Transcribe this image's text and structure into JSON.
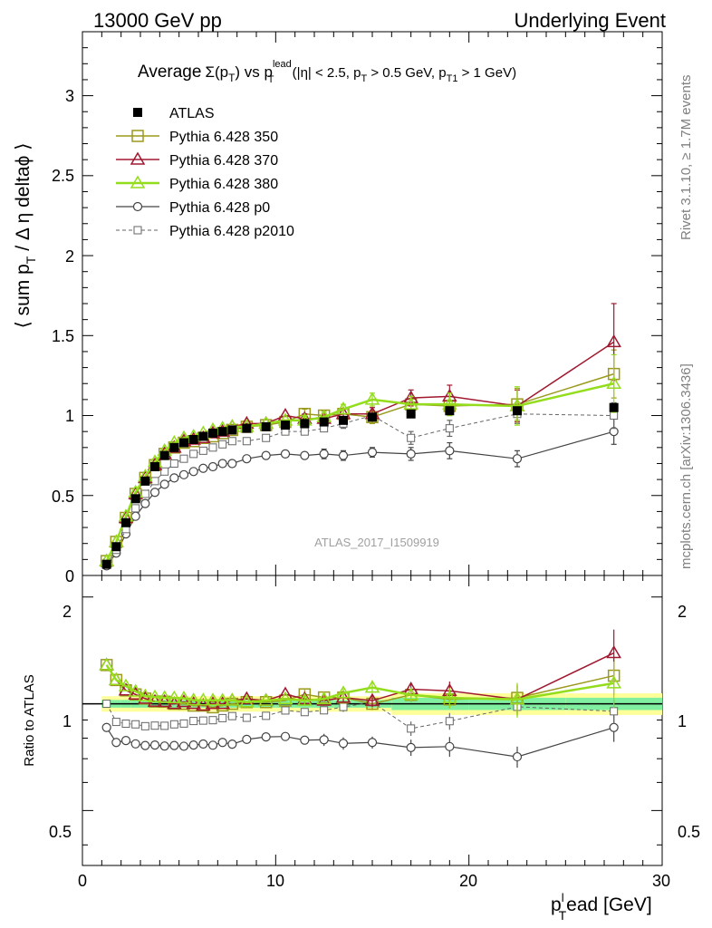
{
  "header": {
    "left": "13000 GeV pp",
    "right": "Underlying Event"
  },
  "title": {
    "prefix": "Average",
    "sigma": "Σ(p",
    "sigma_sub": "T",
    "sigma_close": ")",
    "vs": " vs p",
    "lead_sup": "lead",
    "lead_sub": "T",
    "cuts1": " (|η| < 2.5, p",
    "cuts1_sub": "T",
    "cuts2": " > 0.5 GeV, p",
    "cuts2_sub": "T1",
    "cuts3": " > 1 GeV)"
  },
  "ylabel": {
    "a": "⟨ sum p",
    "sub": "T",
    "b": " / Δ η deltaϕ ⟩"
  },
  "ratio_ylabel": "Ratio to ATLAS",
  "xlabel": {
    "a": "p",
    "sup": "l",
    "sub": "T",
    "b": "ead [GeV]"
  },
  "side_labels": {
    "rivet": "Rivet 3.1.10, ≥ 1.7M events",
    "mcplots": "mcplots.cern.ch [arXiv:1306.3436]"
  },
  "watermark": "ATLAS_2017_I1509919",
  "main_ticks": {
    "y": [
      "0",
      "0.5",
      "1",
      "1.5",
      "2",
      "2.5",
      "3"
    ]
  },
  "ratio_ticks": {
    "y": [
      "0.5",
      "1",
      "2"
    ]
  },
  "x_ticks": [
    "0",
    "10",
    "20",
    "30"
  ],
  "legend": [
    {
      "name": "ATLAS"
    },
    {
      "name": "Pythia 6.428 350"
    },
    {
      "name": "Pythia 6.428 370"
    },
    {
      "name": "Pythia 6.428 380"
    },
    {
      "name": "Pythia 6.428 p0"
    },
    {
      "name": "Pythia 6.428 p2010"
    }
  ],
  "chart_data": {
    "type": "scatter",
    "x_range": [
      0,
      30
    ],
    "main_y_range": [
      0,
      3.4
    ],
    "ratio_y_range": [
      0.35,
      2.3
    ],
    "ratio_y_scale": "log",
    "colors": {
      "ATLAS": "#000000",
      "350": "#9a9a1e",
      "370": "#a01830",
      "380": "#94dd1c",
      "p0": "#444444",
      "p2010": "#666666"
    },
    "x": [
      1.25,
      1.75,
      2.25,
      2.75,
      3.25,
      3.75,
      4.25,
      4.75,
      5.25,
      5.75,
      6.25,
      6.75,
      7.25,
      7.75,
      8.5,
      9.5,
      10.5,
      11.5,
      12.5,
      13.5,
      15,
      17,
      19,
      22.5,
      27.5
    ],
    "series": [
      {
        "name": "ATLAS",
        "values": [
          0.07,
          0.18,
          0.33,
          0.48,
          0.59,
          0.68,
          0.75,
          0.8,
          0.83,
          0.85,
          0.87,
          0.89,
          0.9,
          0.91,
          0.92,
          0.93,
          0.94,
          0.95,
          0.96,
          0.97,
          0.99,
          1.01,
          1.03,
          1.03,
          1.05
        ]
      },
      {
        "name": "350",
        "values": [
          0.09,
          0.21,
          0.36,
          0.51,
          0.61,
          0.69,
          0.76,
          0.8,
          0.83,
          0.84,
          0.86,
          0.87,
          0.89,
          0.91,
          0.93,
          0.94,
          0.96,
          1.01,
          1.0,
          1.01,
          0.99,
          1.07,
          1.06,
          1.07,
          1.26
        ]
      },
      {
        "name": "370",
        "values": [
          0.09,
          0.21,
          0.36,
          0.51,
          0.61,
          0.69,
          0.76,
          0.8,
          0.84,
          0.85,
          0.86,
          0.89,
          0.9,
          0.93,
          0.95,
          0.95,
          1.0,
          0.98,
          0.98,
          1.01,
          1.01,
          1.11,
          1.12,
          1.06,
          1.46
        ]
      },
      {
        "name": "380",
        "values": [
          0.09,
          0.21,
          0.37,
          0.52,
          0.62,
          0.71,
          0.78,
          0.83,
          0.86,
          0.87,
          0.89,
          0.91,
          0.92,
          0.93,
          0.93,
          0.95,
          0.97,
          0.97,
          0.99,
          1.04,
          1.1,
          1.07,
          1.07,
          1.06,
          1.2
        ]
      },
      {
        "name": "p0",
        "values": [
          0.06,
          0.14,
          0.26,
          0.37,
          0.45,
          0.52,
          0.57,
          0.61,
          0.63,
          0.65,
          0.67,
          0.68,
          0.7,
          0.7,
          0.73,
          0.75,
          0.76,
          0.75,
          0.76,
          0.75,
          0.77,
          0.76,
          0.78,
          0.73,
          0.9
        ]
      },
      {
        "name": "p2010",
        "values": [
          0.07,
          0.16,
          0.29,
          0.42,
          0.51,
          0.59,
          0.65,
          0.7,
          0.73,
          0.76,
          0.78,
          0.8,
          0.82,
          0.84,
          0.84,
          0.86,
          0.9,
          0.9,
          0.92,
          0.95,
          1.0,
          0.86,
          0.92,
          1.01,
          1.0
        ]
      }
    ],
    "errors": {
      "350": [
        0,
        0,
        0,
        0,
        0,
        0,
        0,
        0,
        0,
        0,
        0,
        0,
        0,
        0,
        0,
        0,
        0,
        0.03,
        0.03,
        0.03,
        0.04,
        0.05,
        0.06,
        0.1,
        0.15
      ],
      "370": [
        0,
        0,
        0,
        0,
        0,
        0,
        0,
        0,
        0,
        0,
        0,
        0,
        0,
        0,
        0,
        0,
        0,
        0.03,
        0.03,
        0.03,
        0.04,
        0.05,
        0.07,
        0.1,
        0.24
      ],
      "380": [
        0,
        0,
        0,
        0,
        0,
        0,
        0,
        0,
        0,
        0,
        0,
        0,
        0,
        0,
        0,
        0,
        0,
        0.03,
        0.03,
        0.03,
        0.04,
        0.05,
        0.07,
        0.12,
        0.18
      ],
      "p0": [
        0,
        0,
        0,
        0,
        0,
        0,
        0,
        0,
        0,
        0,
        0,
        0,
        0,
        0,
        0.02,
        0.02,
        0.02,
        0.02,
        0.03,
        0.03,
        0.03,
        0.04,
        0.05,
        0.05,
        0.08
      ],
      "p2010": [
        0,
        0,
        0,
        0,
        0,
        0,
        0,
        0,
        0,
        0,
        0,
        0,
        0,
        0,
        0,
        0,
        0.02,
        0.02,
        0.02,
        0.03,
        0.03,
        0.04,
        0.05,
        0.06,
        0.08
      ]
    }
  }
}
